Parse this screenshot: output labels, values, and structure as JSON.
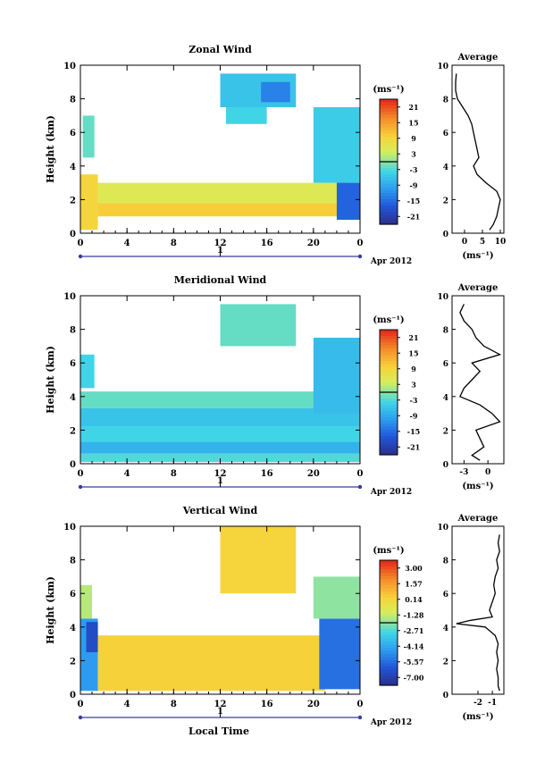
{
  "figure": {
    "date_label": "Apr 2012",
    "xlabel_bottom": "Local Time",
    "time_ticks": [
      "0",
      "4",
      "8",
      "12",
      "16",
      "20",
      "0"
    ],
    "day_label": "1"
  },
  "chart_data": [
    {
      "type": "heatmap",
      "title": "Zonal Wind",
      "ylabel": "Height (km)",
      "xlabel": "",
      "xlim": [
        0,
        24
      ],
      "ylim": [
        0,
        10
      ],
      "y_ticks": [
        "0",
        "2",
        "4",
        "6",
        "8",
        "10"
      ],
      "colorbar": {
        "units": "(ms⁻¹)",
        "ticks": [
          "21",
          "15",
          "9",
          "3",
          "-3",
          "-9",
          "-15",
          "-21"
        ],
        "range": [
          -24,
          24
        ]
      },
      "regions": [
        {
          "t": [
            0,
            1.5
          ],
          "h": [
            0.2,
            3.5
          ],
          "v": 9
        },
        {
          "t": [
            0.2,
            1.2
          ],
          "h": [
            4.5,
            7.0
          ],
          "v": -2
        },
        {
          "t": [
            1.5,
            23.0
          ],
          "h": [
            1.0,
            1.8
          ],
          "v": 10
        },
        {
          "t": [
            1.5,
            23.0
          ],
          "h": [
            1.8,
            3.0
          ],
          "v": 5
        },
        {
          "t": [
            12.0,
            18.5
          ],
          "h": [
            7.5,
            9.5
          ],
          "v": -6
        },
        {
          "t": [
            15.5,
            18.0
          ],
          "h": [
            7.8,
            9.0
          ],
          "v": -13
        },
        {
          "t": [
            12.5,
            16.0
          ],
          "h": [
            6.5,
            7.5
          ],
          "v": -4
        },
        {
          "t": [
            20.0,
            24.0
          ],
          "h": [
            3.0,
            7.5
          ],
          "v": -5
        },
        {
          "t": [
            22.0,
            24.0
          ],
          "h": [
            0.8,
            3.0
          ],
          "v": -16
        }
      ],
      "average_profile": {
        "title": "Average",
        "xlabel": "(ms⁻¹)",
        "x_ticks": [
          "0",
          "5",
          "10"
        ],
        "xlim": [
          -3.5,
          11
        ],
        "height": [
          0.2,
          0.5,
          1.0,
          1.5,
          2.0,
          2.5,
          3.0,
          3.5,
          4.0,
          4.5,
          5.0,
          5.5,
          6.0,
          6.5,
          7.0,
          7.5,
          8.0,
          8.5,
          9.0,
          9.5
        ],
        "value": [
          7,
          8,
          9,
          9.5,
          10,
          9,
          6,
          3.5,
          2.5,
          4,
          3.5,
          3,
          2.5,
          2,
          1,
          -0.5,
          -2,
          -2.5,
          -2.5,
          -2.3
        ]
      }
    },
    {
      "type": "heatmap",
      "title": "Meridional Wind",
      "ylabel": "Height (km)",
      "xlabel": "",
      "xlim": [
        0,
        24
      ],
      "ylim": [
        0,
        10
      ],
      "y_ticks": [
        "0",
        "2",
        "4",
        "6",
        "8",
        "10"
      ],
      "colorbar": {
        "units": "(ms⁻¹)",
        "ticks": [
          "21",
          "15",
          "9",
          "3",
          "-3",
          "-9",
          "-15",
          "-21"
        ],
        "range": [
          -24,
          24
        ]
      },
      "regions": [
        {
          "t": [
            0,
            24.0
          ],
          "h": [
            0.1,
            0.6
          ],
          "v": -3
        },
        {
          "t": [
            0,
            24.0
          ],
          "h": [
            0.6,
            1.3
          ],
          "v": -8
        },
        {
          "t": [
            0,
            24.0
          ],
          "h": [
            1.3,
            2.2
          ],
          "v": -4
        },
        {
          "t": [
            0,
            24.0
          ],
          "h": [
            2.2,
            3.3
          ],
          "v": -6
        },
        {
          "t": [
            0,
            24.0
          ],
          "h": [
            3.3,
            4.3
          ],
          "v": -2
        },
        {
          "t": [
            0,
            1.2
          ],
          "h": [
            4.5,
            6.5
          ],
          "v": -4
        },
        {
          "t": [
            12.0,
            18.5
          ],
          "h": [
            7.0,
            9.5
          ],
          "v": -2
        },
        {
          "t": [
            20.0,
            24.0
          ],
          "h": [
            3.0,
            7.5
          ],
          "v": -7
        }
      ],
      "average_profile": {
        "title": "Average",
        "xlabel": "(ms⁻¹)",
        "x_ticks": [
          "-3",
          "0"
        ],
        "xlim": [
          -4.5,
          2
        ],
        "height": [
          0.2,
          0.5,
          1.0,
          1.5,
          2.0,
          2.5,
          3.0,
          3.5,
          4.0,
          4.5,
          5.0,
          5.5,
          6.0,
          6.5,
          7.0,
          7.5,
          8.0,
          8.5,
          9.0,
          9.5
        ],
        "value": [
          -1,
          -2,
          -0.5,
          -1,
          -1.5,
          1.5,
          0.5,
          -1,
          -3.5,
          -3,
          -2,
          -1,
          -2,
          1.5,
          -0.5,
          -1.5,
          -2,
          -3,
          -3.5,
          -3
        ]
      }
    },
    {
      "type": "heatmap",
      "title": "Vertical Wind",
      "ylabel": "Height (km)",
      "xlabel": "Local Time",
      "xlim": [
        0,
        24
      ],
      "ylim": [
        0,
        10
      ],
      "y_ticks": [
        "0",
        "2",
        "4",
        "6",
        "8",
        "10"
      ],
      "colorbar": {
        "units": "(ms⁻¹)",
        "ticks": [
          "3.00",
          "1.57",
          "0.14",
          "-1.28",
          "-2.71",
          "-4.14",
          "-5.57",
          "-7.00"
        ],
        "range": [
          -7.7,
          3.7
        ]
      },
      "regions": [
        {
          "t": [
            0,
            1.5
          ],
          "h": [
            0.2,
            4.5
          ],
          "v": -4.5
        },
        {
          "t": [
            0.5,
            1.5
          ],
          "h": [
            2.5,
            4.3
          ],
          "v": -6.5
        },
        {
          "t": [
            0,
            1.0
          ],
          "h": [
            4.5,
            6.5
          ],
          "v": -1.5
        },
        {
          "t": [
            1.5,
            21.0
          ],
          "h": [
            0.2,
            3.5
          ],
          "v": 0.3
        },
        {
          "t": [
            12.0,
            18.5
          ],
          "h": [
            6.0,
            10.0
          ],
          "v": 0.2
        },
        {
          "t": [
            20.5,
            24.0
          ],
          "h": [
            0.3,
            4.5
          ],
          "v": -5.5
        },
        {
          "t": [
            20.0,
            24.0
          ],
          "h": [
            4.5,
            7.0
          ],
          "v": -2
        }
      ],
      "average_profile": {
        "title": "Average",
        "xlabel": "(ms⁻¹)",
        "x_ticks": [
          "-2",
          "-1"
        ],
        "xlim": [
          -3.8,
          -0.2
        ],
        "height": [
          0.2,
          0.5,
          1.0,
          1.5,
          2.0,
          2.5,
          3.0,
          3.5,
          4.0,
          4.2,
          4.4,
          4.6,
          5.0,
          5.5,
          6.0,
          6.5,
          7.0,
          7.5,
          8.0,
          8.5,
          9.0,
          9.5
        ],
        "value": [
          -0.5,
          -0.6,
          -0.6,
          -0.7,
          -0.6,
          -0.7,
          -0.6,
          -0.8,
          -1.5,
          -3.5,
          -2.5,
          -1.0,
          -1.2,
          -1.0,
          -0.8,
          -0.9,
          -0.8,
          -0.6,
          -0.7,
          -0.5,
          -0.6,
          -0.5
        ]
      }
    }
  ]
}
